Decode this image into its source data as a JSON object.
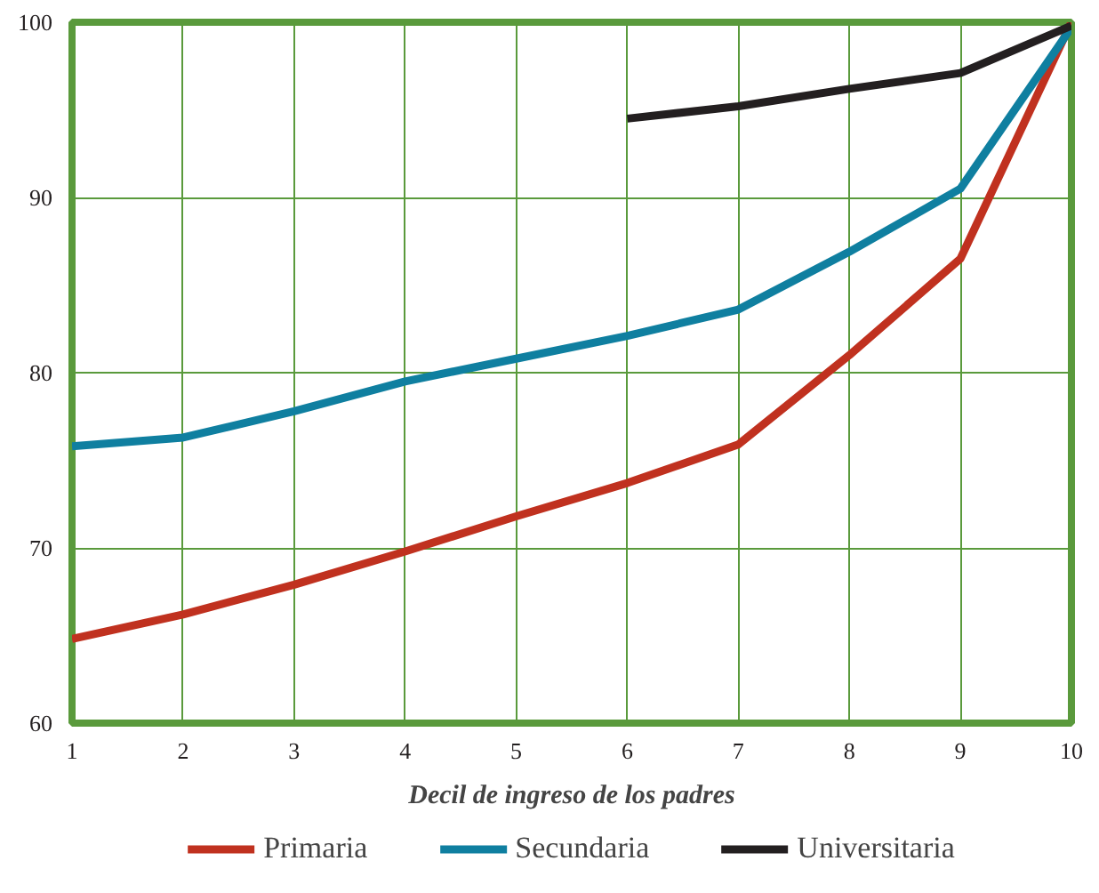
{
  "chart_data": {
    "type": "line",
    "xlabel": "Decil de ingreso de los padres",
    "x": [
      1,
      2,
      3,
      4,
      5,
      6,
      7,
      8,
      9,
      10
    ],
    "series": [
      {
        "name": "Primaria",
        "color": "#c0311f",
        "values": [
          64.8,
          66.2,
          67.9,
          69.8,
          71.8,
          73.7,
          75.9,
          81.0,
          86.5,
          100
        ]
      },
      {
        "name": "Secundaria",
        "color": "#0f7fa0",
        "values": [
          75.8,
          76.3,
          77.8,
          79.5,
          80.8,
          82.1,
          83.6,
          86.9,
          90.5,
          99.7
        ]
      },
      {
        "name": "Universitaria",
        "color": "#231f20",
        "values": [
          null,
          null,
          null,
          null,
          null,
          94.5,
          95.2,
          96.2,
          97.1,
          99.8
        ]
      }
    ],
    "xlim": [
      1,
      10
    ],
    "ylim": [
      60,
      100
    ],
    "xticks": [
      1,
      2,
      3,
      4,
      5,
      6,
      7,
      8,
      9,
      10
    ],
    "yticks": [
      60,
      70,
      80,
      90,
      100
    ],
    "grid": true,
    "legend": "bottom",
    "marker": "none",
    "line_style": "solid"
  }
}
